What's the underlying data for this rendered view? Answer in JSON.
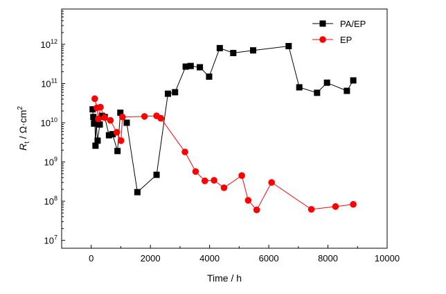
{
  "chart_data": {
    "type": "line",
    "xlabel": "Time / h",
    "ylabel": {
      "main": "R",
      "sub": "t",
      "rest": " / Ω·cm",
      "sup": "2"
    },
    "xlim": [
      -1000,
      10000
    ],
    "ylog": true,
    "ylim_exp": [
      6.8,
      12.9
    ],
    "x_ticks": [
      {
        "value": 0,
        "label": "0"
      },
      {
        "value": 2000,
        "label": "2000"
      },
      {
        "value": 4000,
        "label": "4000"
      },
      {
        "value": 6000,
        "label": "6000"
      },
      {
        "value": 8000,
        "label": "8000"
      },
      {
        "value": 10000,
        "label": "10000"
      }
    ],
    "y_ticks": [
      {
        "exp": 7,
        "base": "10",
        "sup": "7"
      },
      {
        "exp": 8,
        "base": "10",
        "sup": "8"
      },
      {
        "exp": 9,
        "base": "10",
        "sup": "9"
      },
      {
        "exp": 10,
        "base": "10",
        "sup": "10"
      },
      {
        "exp": 11,
        "base": "10",
        "sup": "11"
      },
      {
        "exp": 12,
        "base": "10",
        "sup": "12"
      }
    ],
    "grid": false,
    "legend_position": "top-right",
    "series": [
      {
        "name": "PA/EP",
        "color": "#000000",
        "marker": "square",
        "points": [
          [
            48,
            22000000000.0
          ],
          [
            72,
            14000000000.0
          ],
          [
            96,
            9500000000.0
          ],
          [
            120,
            11500000000.0
          ],
          [
            144,
            2600000000.0
          ],
          [
            168,
            10000000000.0
          ],
          [
            216,
            3500000000.0
          ],
          [
            288,
            9000000000.0
          ],
          [
            360,
            15000000000.0
          ],
          [
            456,
            14000000000.0
          ],
          [
            600,
            4800000000.0
          ],
          [
            720,
            5100000000.0
          ],
          [
            888,
            1900000000.0
          ],
          [
            984,
            18000000000.0
          ],
          [
            1200,
            10000000000.0
          ],
          [
            1560,
            170000000.0
          ],
          [
            2208,
            470000000.0
          ],
          [
            2592,
            55000000000.0
          ],
          [
            2832,
            60000000000.0
          ],
          [
            3192,
            270000000000.0
          ],
          [
            3360,
            280000000000.0
          ],
          [
            3672,
            260000000000.0
          ],
          [
            3984,
            150000000000.0
          ],
          [
            4344,
            800000000000.0
          ],
          [
            4800,
            600000000000.0
          ],
          [
            5472,
            700000000000.0
          ],
          [
            6672,
            900000000000.0
          ],
          [
            7032,
            80000000000.0
          ],
          [
            7632,
            58000000000.0
          ],
          [
            7968,
            105000000000.0
          ],
          [
            8640,
            65000000000.0
          ],
          [
            8856,
            120000000000.0
          ]
        ]
      },
      {
        "name": "EP",
        "color": "#ff0000",
        "marker": "circle",
        "points": [
          [
            120,
            41000000000.0
          ],
          [
            192,
            24000000000.0
          ],
          [
            240,
            12500000000.0
          ],
          [
            312,
            25000000000.0
          ],
          [
            456,
            13500000000.0
          ],
          [
            648,
            11500000000.0
          ],
          [
            864,
            5700000000.0
          ],
          [
            1008,
            3500000000.0
          ],
          [
            1056,
            14000000000.0
          ],
          [
            1800,
            14500000000.0
          ],
          [
            2208,
            15000000000.0
          ],
          [
            2352,
            13000000000.0
          ],
          [
            3168,
            1800000000.0
          ],
          [
            3528,
            570000000.0
          ],
          [
            3840,
            330000000.0
          ],
          [
            4152,
            340000000.0
          ],
          [
            4488,
            220000000.0
          ],
          [
            5088,
            450000000.0
          ],
          [
            5304,
            105000000.0
          ],
          [
            5592,
            60000000.0
          ],
          [
            6096,
            300000000.0
          ],
          [
            7440,
            62000000.0
          ],
          [
            8256,
            73000000.0
          ],
          [
            8856,
            83000000.0
          ]
        ]
      }
    ]
  }
}
